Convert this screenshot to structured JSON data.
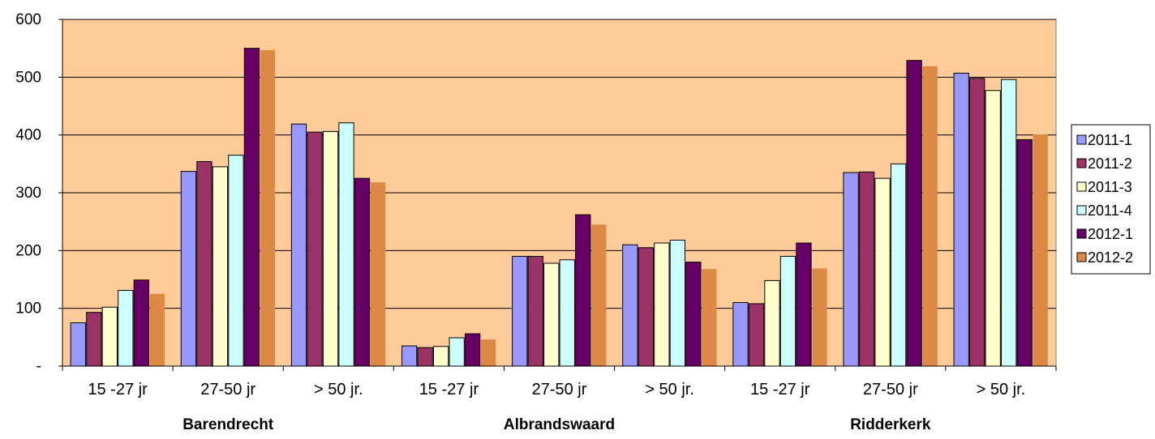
{
  "chart_data": {
    "type": "bar",
    "categories": [
      "15 -27 jr",
      "27-50 jr",
      "> 50 jr.",
      "15 -27 jr",
      "27-50 jr",
      "> 50 jr.",
      "15 -27 jr",
      "27-50 jr",
      "> 50 jr."
    ],
    "groups": [
      "Barendrecht",
      "Albrandswaard",
      "Ridderkerk"
    ],
    "series": [
      {
        "name": "2011-1",
        "color": "#9999ff",
        "values": [
          75,
          337,
          419,
          35,
          190,
          210,
          110,
          335,
          507
        ]
      },
      {
        "name": "2011-2",
        "color": "#993366",
        "values": [
          93,
          354,
          405,
          32,
          190,
          205,
          108,
          336,
          498
        ]
      },
      {
        "name": "2011-3",
        "color": "#ffffcc",
        "values": [
          102,
          345,
          406,
          34,
          178,
          213,
          148,
          325,
          477
        ]
      },
      {
        "name": "2011-4",
        "color": "#ccffff",
        "values": [
          131,
          365,
          421,
          49,
          184,
          218,
          190,
          350,
          496
        ]
      },
      {
        "name": "2012-1",
        "color": "#660066",
        "values": [
          149,
          550,
          325,
          56,
          262,
          180,
          213,
          529,
          392
        ]
      },
      {
        "name": "2012-2",
        "color": "#dd8844",
        "values": [
          125,
          547,
          318,
          46,
          245,
          168,
          169,
          519,
          401
        ]
      }
    ],
    "ylim": [
      0,
      600
    ],
    "yticks": [
      0,
      100,
      200,
      300,
      400,
      500,
      600
    ],
    "ytick_labels": [
      "-",
      "100",
      "200",
      "300",
      "400",
      "500",
      "600"
    ],
    "grid": true,
    "plot_background": "#ffcc99",
    "legend_position": "right",
    "title": "",
    "xlabel": "",
    "ylabel": ""
  }
}
